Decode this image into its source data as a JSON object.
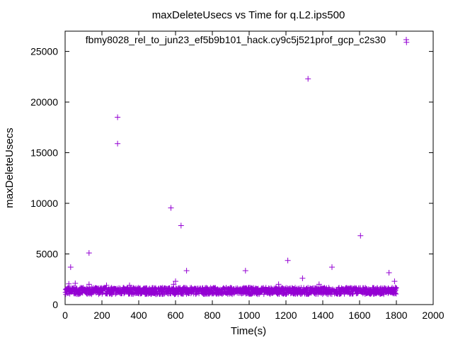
{
  "chart_data": {
    "type": "scatter",
    "title": "maxDeleteUsecs vs Time for q.L2.ips500",
    "xlabel": "Time(s)",
    "ylabel": "maxDeleteUsecs",
    "xlim": [
      0,
      2000
    ],
    "ylim": [
      0,
      27000
    ],
    "xticks": [
      0,
      200,
      400,
      600,
      800,
      1000,
      1200,
      1400,
      1600,
      1800,
      2000
    ],
    "yticks": [
      0,
      5000,
      10000,
      15000,
      20000,
      25000
    ],
    "grid": false,
    "legend_position": "top-right",
    "series": [
      {
        "name": "fbmy8028_rel_to_jun23_ef5b9b101_hack.cy9c5j521prof_gcp_c2s30",
        "color": "#9400d3",
        "marker": "+",
        "baseline_band": {
          "x_range": [
            0,
            1800
          ],
          "y_range": [
            1000,
            1700
          ]
        },
        "points": [
          [
            10,
            1400
          ],
          [
            20,
            2050
          ],
          [
            30,
            3700
          ],
          [
            55,
            2100
          ],
          [
            130,
            5100
          ],
          [
            130,
            2000
          ],
          [
            225,
            1900
          ],
          [
            285,
            18500
          ],
          [
            285,
            15900
          ],
          [
            350,
            1900
          ],
          [
            575,
            9550
          ],
          [
            590,
            2000
          ],
          [
            600,
            2300
          ],
          [
            630,
            7800
          ],
          [
            660,
            3350
          ],
          [
            980,
            3350
          ],
          [
            1160,
            2000
          ],
          [
            1210,
            4350
          ],
          [
            1290,
            2600
          ],
          [
            1320,
            22300
          ],
          [
            1380,
            2000
          ],
          [
            1450,
            3700
          ],
          [
            1605,
            6800
          ],
          [
            1760,
            3150
          ],
          [
            1790,
            2300
          ],
          [
            1795,
            1700
          ],
          [
            1855,
            25900
          ]
        ]
      }
    ]
  }
}
